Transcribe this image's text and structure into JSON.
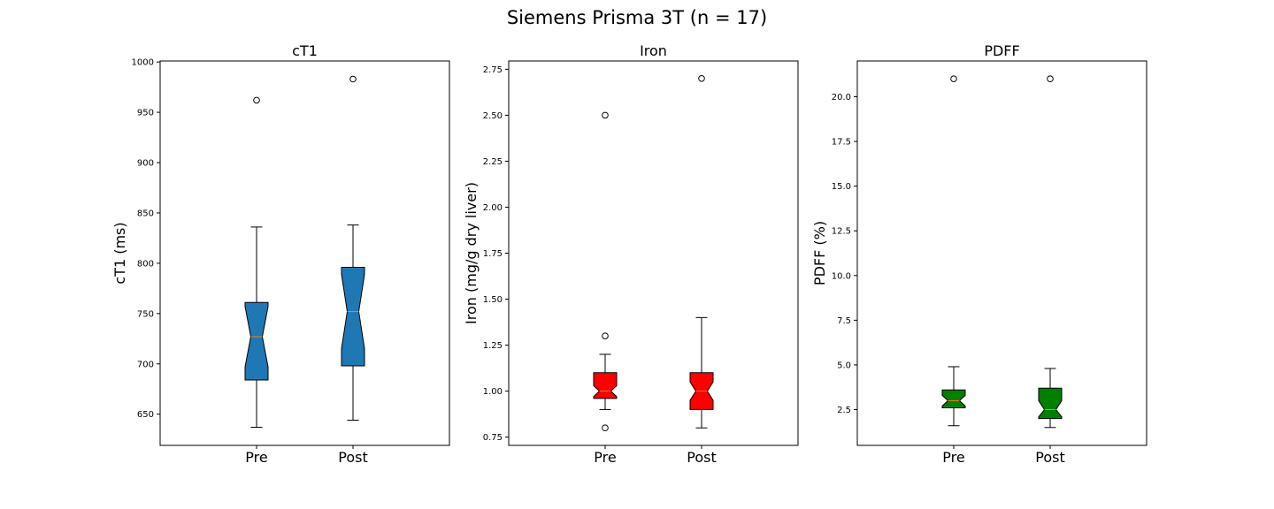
{
  "figure": {
    "title": "Siemens Prisma 3T (n = 17)"
  },
  "chart_data": [
    {
      "type": "box",
      "title": "cT1",
      "ylabel": "cT1 (ms)",
      "xlabel": "",
      "categories": [
        "Pre",
        "Post"
      ],
      "ylim": [
        619,
        1001
      ],
      "yticks": [
        650,
        700,
        750,
        800,
        850,
        900,
        950,
        1000
      ],
      "ytick_labels": [
        "650",
        "700",
        "750",
        "800",
        "850",
        "900",
        "950",
        "1000"
      ],
      "notched": true,
      "box_color": "#1f77b4",
      "median_color": "#ff7f0e",
      "boxes": [
        {
          "category": "Pre",
          "whislo": 637,
          "q1": 684,
          "med": 727,
          "q3": 761,
          "whishi": 836,
          "notch_lo": 697,
          "notch_hi": 757,
          "fliers": [
            962
          ]
        },
        {
          "category": "Post",
          "whislo": 644,
          "q1": 698,
          "med": 752,
          "q3": 796,
          "whishi": 838,
          "notch_lo": 715,
          "notch_hi": 789,
          "fliers": [
            983
          ]
        }
      ]
    },
    {
      "type": "box",
      "title": "Iron",
      "ylabel": "Iron (mg/g dry liver)",
      "xlabel": "",
      "categories": [
        "Pre",
        "Post"
      ],
      "ylim": [
        0.705,
        2.795
      ],
      "yticks": [
        0.75,
        1.0,
        1.25,
        1.5,
        1.75,
        2.0,
        2.25,
        2.5,
        2.75
      ],
      "ytick_labels": [
        "0.75",
        "1.00",
        "1.25",
        "1.50",
        "1.75",
        "2.00",
        "2.25",
        "2.50",
        "2.75"
      ],
      "notched": true,
      "box_color": "#ff0000",
      "median_color": "#ff7f0e",
      "boxes": [
        {
          "category": "Pre",
          "whislo": 0.9,
          "q1": 0.96,
          "med": 1.0,
          "q3": 1.1,
          "whishi": 1.2,
          "notch_lo": 0.97,
          "notch_hi": 1.03,
          "fliers": [
            2.5,
            1.3,
            0.8
          ]
        },
        {
          "category": "Post",
          "whislo": 0.8,
          "q1": 0.9,
          "med": 1.0,
          "q3": 1.1,
          "whishi": 1.4,
          "notch_lo": 0.95,
          "notch_hi": 1.05,
          "fliers": [
            2.7
          ]
        }
      ]
    },
    {
      "type": "box",
      "title": "PDFF",
      "ylabel": "PDFF (%)",
      "xlabel": "",
      "categories": [
        "Pre",
        "Post"
      ],
      "ylim": [
        0.5,
        22.0
      ],
      "yticks": [
        2.5,
        5.0,
        7.5,
        10.0,
        12.5,
        15.0,
        17.5,
        20.0
      ],
      "ytick_labels": [
        "2.5",
        "5.0",
        "7.5",
        "10.0",
        "12.5",
        "15.0",
        "17.5",
        "20.0"
      ],
      "notched": true,
      "box_color": "#008000",
      "median_color": "#ff7f0e",
      "boxes": [
        {
          "category": "Pre",
          "whislo": 1.6,
          "q1": 2.6,
          "med": 3.0,
          "q3": 3.6,
          "whishi": 4.9,
          "notch_lo": 2.7,
          "notch_hi": 3.3,
          "fliers": [
            21.0
          ]
        },
        {
          "category": "Post",
          "whislo": 1.5,
          "q1": 2.0,
          "med": 2.5,
          "q3": 3.7,
          "whishi": 4.8,
          "notch_lo": 2.1,
          "notch_hi": 3.0,
          "fliers": [
            21.0
          ]
        }
      ]
    }
  ]
}
